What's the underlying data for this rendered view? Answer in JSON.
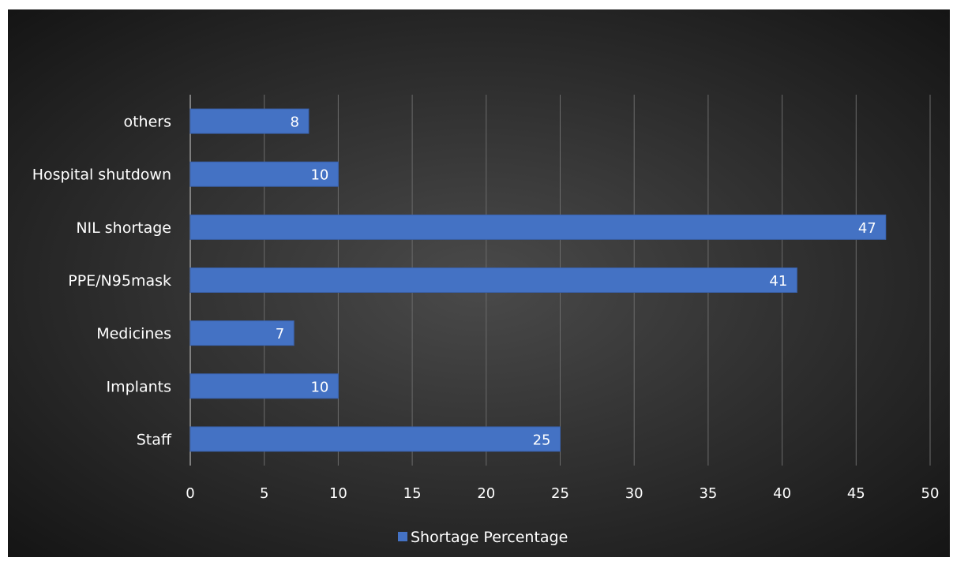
{
  "chart_data": {
    "type": "bar",
    "orientation": "horizontal",
    "categories": [
      "Staff",
      "Implants",
      "Medicines",
      "PPE/N95mask",
      "NIL shortage",
      "Hospital shutdown",
      "others"
    ],
    "series": [
      {
        "name": "Shortage Percentage",
        "values": [
          25,
          10,
          7,
          41,
          47,
          10,
          8
        ]
      }
    ],
    "x_ticks": [
      "0",
      "5",
      "10",
      "15",
      "20",
      "25",
      "30",
      "35",
      "40",
      "45",
      "50"
    ],
    "xlim": [
      0,
      50
    ],
    "title": "",
    "xlabel": "",
    "ylabel": "",
    "grid": true,
    "data_labels": true,
    "legend": {
      "position": "bottom",
      "entries": [
        "Shortage Percentage"
      ]
    },
    "colors": {
      "bar": "#4472c4",
      "bar_border": "#3a62ad",
      "background_center": "#4a4a4a",
      "background_edge": "#151515",
      "gridline": "#6b6b6b",
      "text": "#ffffff"
    }
  }
}
